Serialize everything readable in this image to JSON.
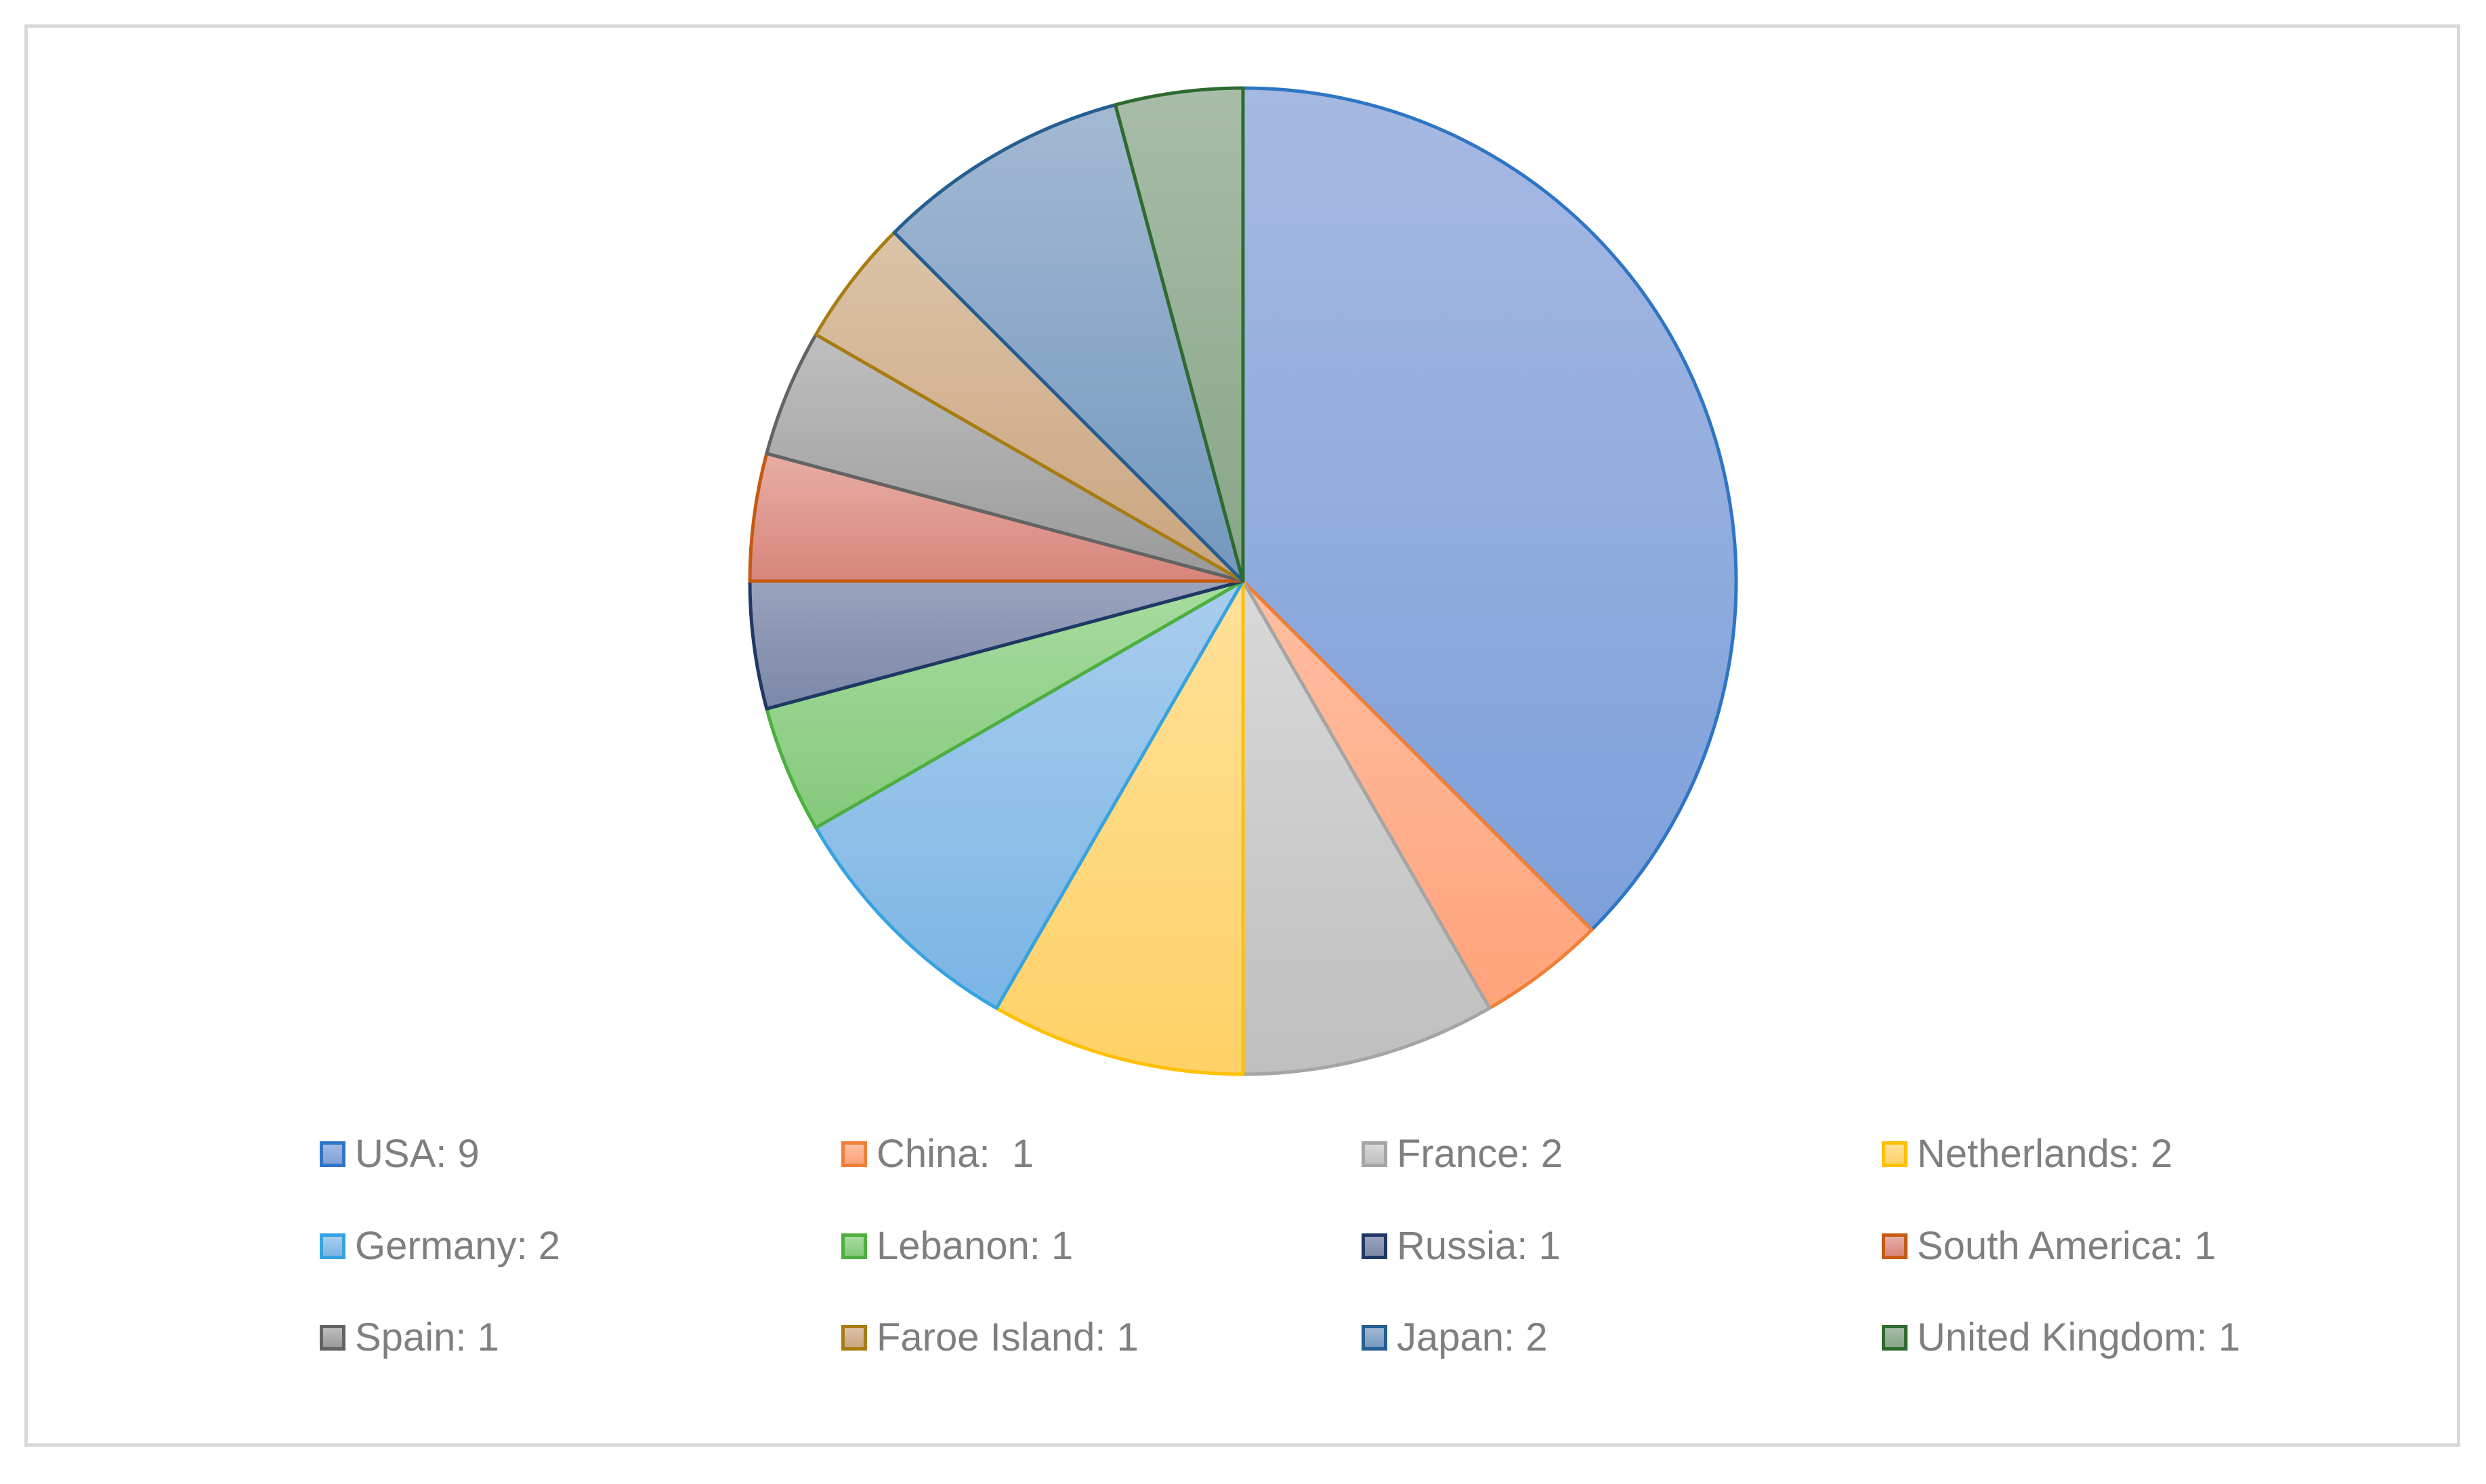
{
  "chart_data": {
    "type": "pie",
    "title": "",
    "categories": [
      "USA",
      "China",
      "France",
      "Netherlands",
      "Germany",
      "Lebanon",
      "Russia",
      "South America",
      "Spain",
      "Faroe Island",
      "Japan",
      "United Kingdom"
    ],
    "values": [
      9,
      1,
      2,
      2,
      2,
      1,
      1,
      1,
      1,
      1,
      2,
      1
    ],
    "legend_labels": [
      "USA: 9",
      "China:  1",
      "France: 2",
      "Netherlands: 2",
      "Germany: 2",
      "Lebanon: 1",
      "Russia: 1",
      "South America: 1",
      "Spain: 1",
      "Faroe Island: 1",
      "Japan: 2",
      "United Kingdom: 1"
    ],
    "fill_colors": [
      [
        "#a6b9e2",
        "#7ea0da"
      ],
      [
        "#ffbfa3",
        "#ffa37a"
      ],
      [
        "#d9d9d9",
        "#bfbfbf"
      ],
      [
        "#ffe199",
        "#ffd166"
      ],
      [
        "#a9cdee",
        "#7ab5e4"
      ],
      [
        "#a8dca0",
        "#84c97a"
      ],
      [
        "#9aa3be",
        "#7c88a8"
      ],
      [
        "#e7aea6",
        "#d7857a"
      ],
      [
        "#bfbfbf",
        "#999999"
      ],
      [
        "#dcc3a8",
        "#c9a57e"
      ],
      [
        "#a3b9d2",
        "#7398be"
      ],
      [
        "#a8bca8",
        "#87a687"
      ]
    ],
    "stroke_colors": [
      "#2e75c6",
      "#f07f36",
      "#a5a5a5",
      "#ffc000",
      "#36a3e0",
      "#4caf3e",
      "#1f3864",
      "#c55a11",
      "#636363",
      "#a97c12",
      "#255e91",
      "#2f6b2f"
    ],
    "start_angle": "12 o'clock",
    "direction": "clockwise",
    "legend_position": "bottom",
    "legend_columns": 4
  }
}
